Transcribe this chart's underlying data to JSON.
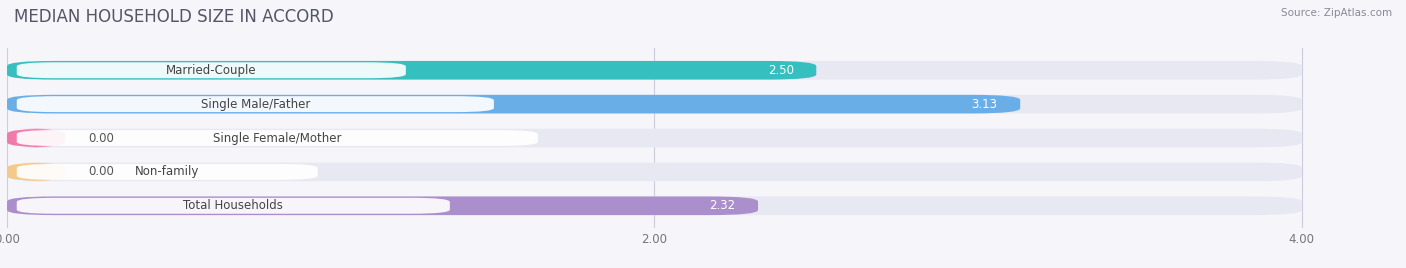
{
  "title": "MEDIAN HOUSEHOLD SIZE IN ACCORD",
  "source": "Source: ZipAtlas.com",
  "categories": [
    "Married-Couple",
    "Single Male/Father",
    "Single Female/Mother",
    "Non-family",
    "Total Households"
  ],
  "values": [
    2.5,
    3.13,
    0.0,
    0.0,
    2.32
  ],
  "bar_colors": [
    "#36bfbf",
    "#6aaee8",
    "#f07aaa",
    "#f5c98a",
    "#ab8fcc"
  ],
  "background_color": "#f5f5fa",
  "bar_bg_color": "#e8e8f2",
  "label_box_color": "#ffffff",
  "xlim": [
    0,
    4.3
  ],
  "xticks": [
    0.0,
    2.0,
    4.0
  ],
  "xtick_labels": [
    "0.00",
    "2.00",
    "4.00"
  ],
  "label_fontsize": 8.5,
  "value_fontsize": 8.5,
  "title_fontsize": 12,
  "value_color_inside": "#ffffff",
  "value_color_outside": "#555555"
}
